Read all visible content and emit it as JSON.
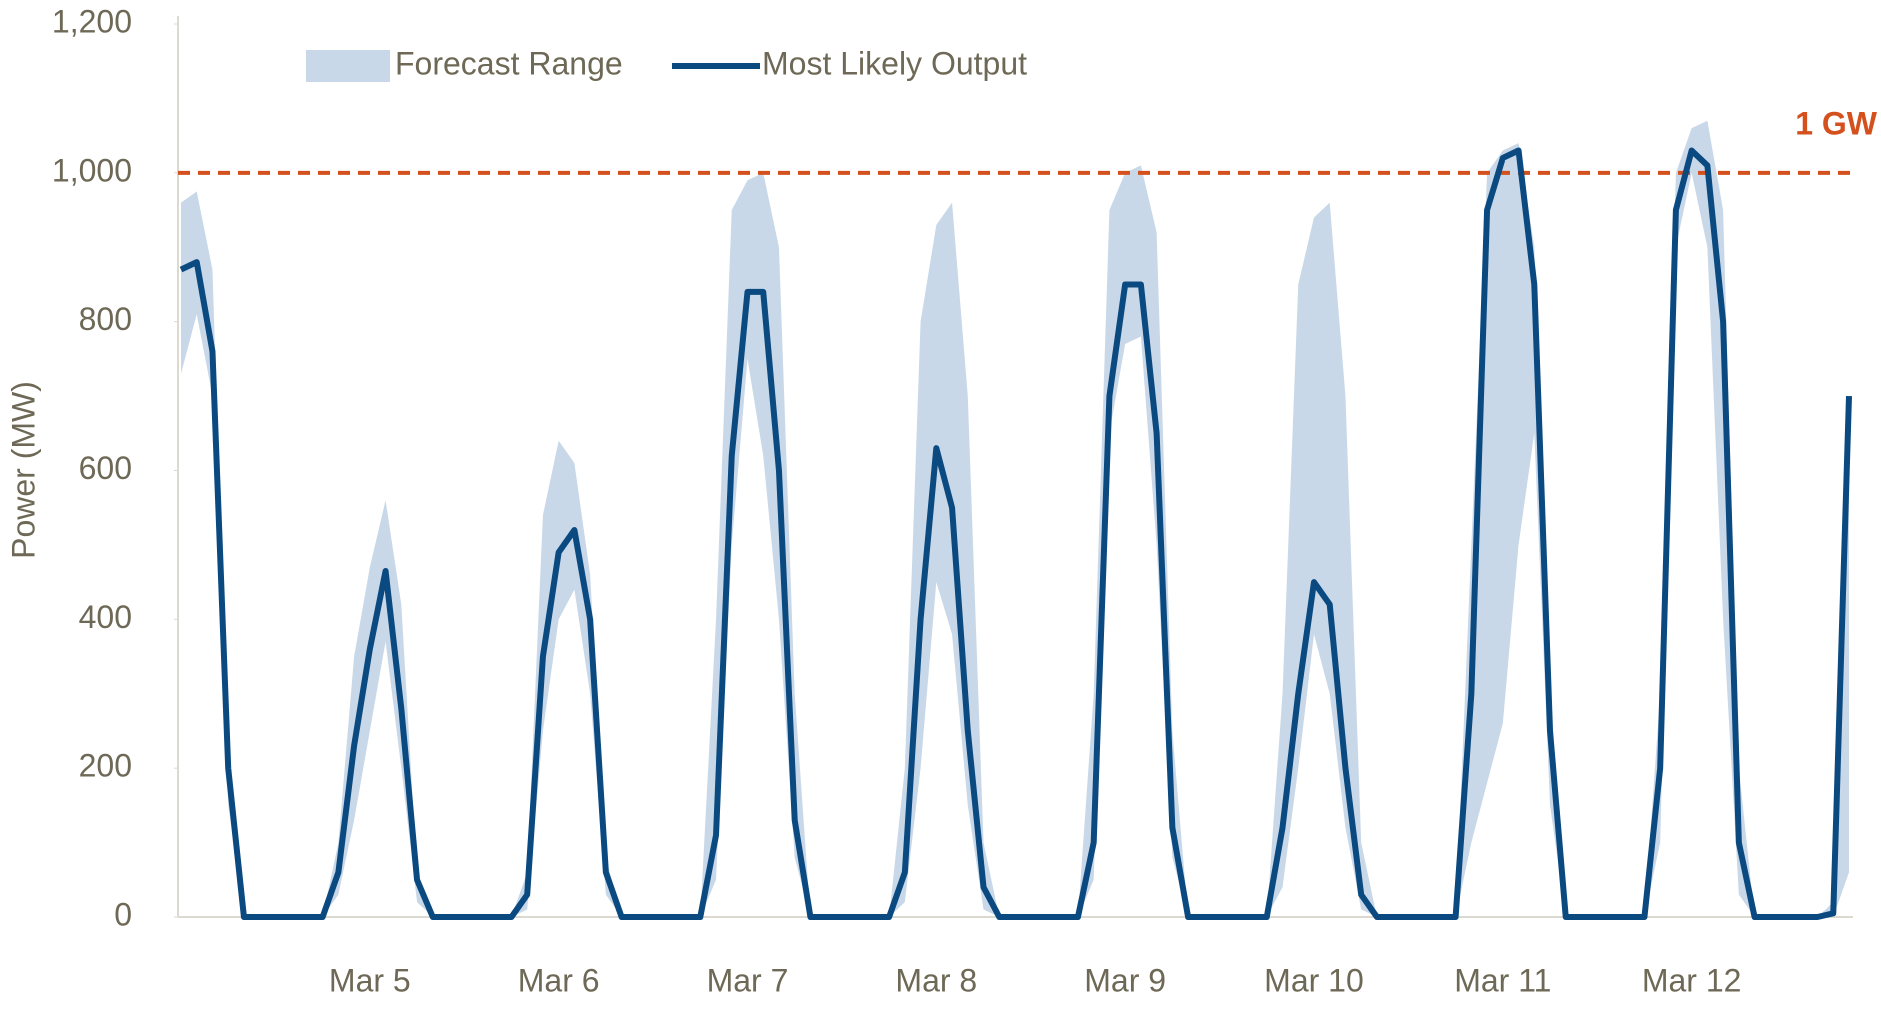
{
  "chart_data": {
    "type": "line",
    "ylabel": "Power (MW)",
    "categories": [
      null,
      null,
      null,
      null,
      null,
      null,
      null,
      null,
      null,
      null,
      null,
      null,
      "Mar 5",
      null,
      null,
      null,
      null,
      null,
      null,
      null,
      null,
      null,
      null,
      null,
      "Mar 6",
      null,
      null,
      null,
      null,
      null,
      null,
      null,
      null,
      null,
      null,
      null,
      "Mar 7",
      null,
      null,
      null,
      null,
      null,
      null,
      null,
      null,
      null,
      null,
      null,
      "Mar 8",
      null,
      null,
      null,
      null,
      null,
      null,
      null,
      null,
      null,
      null,
      null,
      "Mar 9",
      null,
      null,
      null,
      null,
      null,
      null,
      null,
      null,
      null,
      null,
      null,
      "Mar 10",
      null,
      null,
      null,
      null,
      null,
      null,
      null,
      null,
      null,
      null,
      null,
      "Mar 11",
      null,
      null,
      null,
      null,
      null,
      null,
      null,
      null,
      null,
      null,
      null,
      "Mar 12",
      null,
      null,
      null,
      null,
      null,
      null,
      null,
      null,
      null,
      null
    ],
    "ylim": [
      0,
      1200
    ],
    "yticks": [
      0,
      200,
      400,
      600,
      800,
      {
        "value": 1000,
        "label": "1,000"
      },
      {
        "value": 1200,
        "label": "1,200"
      }
    ],
    "grid": false,
    "band": {
      "name": "Forecast Range",
      "color": "#c9d8e8",
      "high": [
        960,
        975,
        870,
        200,
        0,
        0,
        0,
        0,
        0,
        0,
        100,
        350,
        470,
        560,
        420,
        60,
        0,
        0,
        0,
        0,
        0,
        0,
        60,
        540,
        640,
        610,
        460,
        80,
        0,
        0,
        0,
        0,
        0,
        0,
        400,
        950,
        990,
        1000,
        900,
        300,
        0,
        0,
        0,
        0,
        0,
        0,
        200,
        800,
        930,
        960,
        700,
        100,
        0,
        0,
        0,
        0,
        0,
        0,
        300,
        950,
        1000,
        1010,
        920,
        250,
        0,
        0,
        0,
        0,
        0,
        0,
        300,
        850,
        940,
        960,
        700,
        100,
        0,
        0,
        0,
        0,
        0,
        0,
        500,
        1000,
        1030,
        1040,
        900,
        300,
        0,
        0,
        0,
        0,
        0,
        0,
        300,
        1000,
        1060,
        1070,
        950,
        200,
        0,
        0,
        0,
        0,
        0,
        20,
        700
      ],
      "low": [
        730,
        810,
        700,
        150,
        0,
        0,
        0,
        0,
        0,
        0,
        30,
        130,
        250,
        370,
        200,
        20,
        0,
        0,
        0,
        0,
        0,
        0,
        10,
        250,
        400,
        440,
        300,
        30,
        0,
        0,
        0,
        0,
        0,
        0,
        50,
        500,
        750,
        620,
        400,
        80,
        0,
        0,
        0,
        0,
        0,
        0,
        20,
        200,
        450,
        380,
        150,
        10,
        0,
        0,
        0,
        0,
        0,
        0,
        50,
        650,
        770,
        780,
        500,
        80,
        0,
        0,
        0,
        0,
        0,
        0,
        40,
        200,
        380,
        300,
        120,
        10,
        0,
        0,
        0,
        0,
        0,
        0,
        100,
        180,
        260,
        500,
        650,
        150,
        0,
        0,
        0,
        0,
        0,
        0,
        100,
        900,
        1000,
        900,
        400,
        30,
        0,
        0,
        0,
        0,
        0,
        0,
        60
      ]
    },
    "series": [
      {
        "name": "Most Likely Output",
        "color": "#0b4a80",
        "values": [
          870,
          880,
          760,
          200,
          0,
          0,
          0,
          0,
          0,
          0,
          60,
          230,
          360,
          465,
          280,
          50,
          0,
          0,
          0,
          0,
          0,
          0,
          30,
          350,
          490,
          520,
          400,
          60,
          0,
          0,
          0,
          0,
          0,
          0,
          110,
          620,
          840,
          840,
          600,
          130,
          0,
          0,
          0,
          0,
          0,
          0,
          60,
          400,
          630,
          550,
          250,
          40,
          0,
          0,
          0,
          0,
          0,
          0,
          100,
          700,
          850,
          850,
          650,
          120,
          0,
          0,
          0,
          0,
          0,
          0,
          120,
          300,
          450,
          420,
          200,
          30,
          0,
          0,
          0,
          0,
          0,
          0,
          300,
          950,
          1020,
          1030,
          850,
          250,
          0,
          0,
          0,
          0,
          0,
          0,
          200,
          950,
          1030,
          1010,
          800,
          100,
          0,
          0,
          0,
          0,
          0,
          5,
          700
        ]
      }
    ],
    "reference_line": {
      "value": 1000,
      "label": "1 GW",
      "color": "#d4501c"
    }
  }
}
